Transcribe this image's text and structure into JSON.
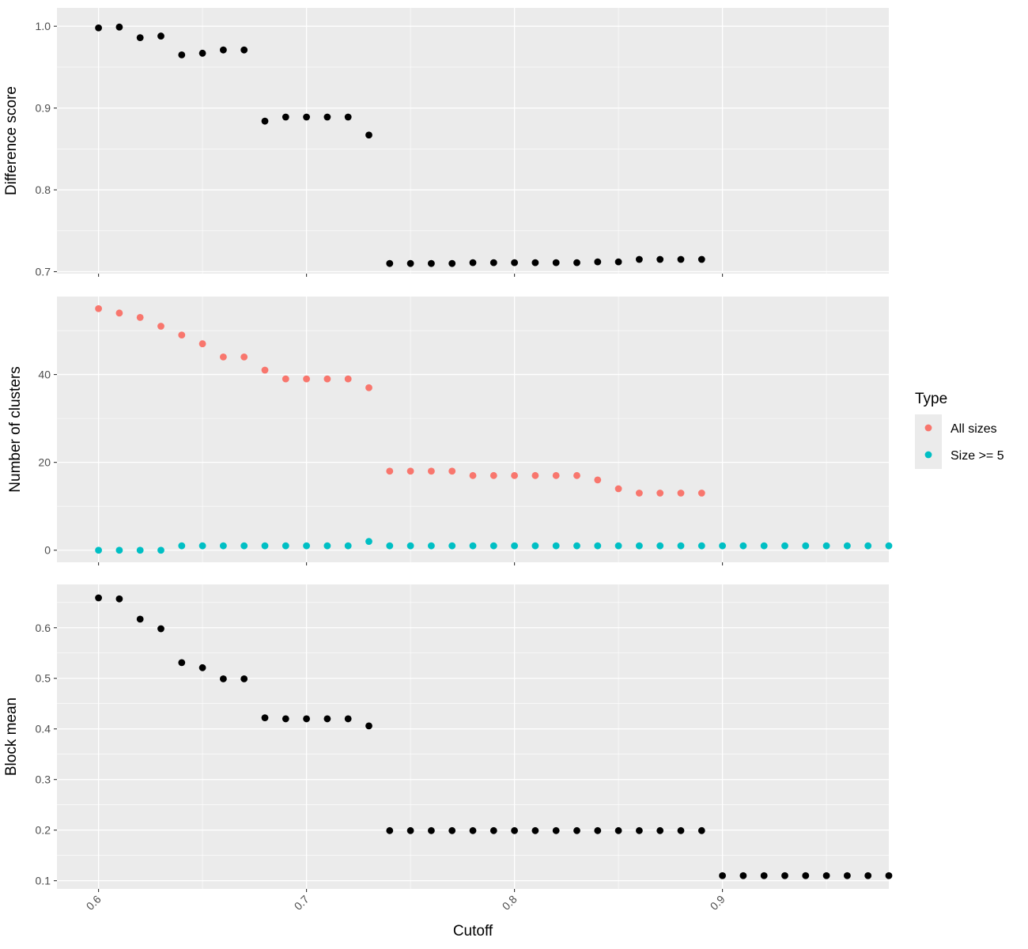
{
  "chart_data": [
    {
      "type": "scatter",
      "panel": "top",
      "ylabel": "Difference score",
      "xlim": [
        0.58,
        0.98
      ],
      "ylim": [
        0.6976,
        1.0224
      ],
      "yticks": [
        {
          "v": 0.7,
          "label": "0.7"
        },
        {
          "v": 0.8,
          "label": "0.8"
        },
        {
          "v": 0.9,
          "label": "0.9"
        },
        {
          "v": 1.0,
          "label": "1.0"
        }
      ],
      "grid": true,
      "series": [
        {
          "color": "#000000",
          "x": [
            0.6,
            0.61,
            0.62,
            0.63,
            0.64,
            0.65,
            0.66,
            0.67,
            0.68,
            0.69,
            0.7,
            0.71,
            0.72,
            0.73,
            0.74,
            0.75,
            0.76,
            0.77,
            0.78,
            0.79,
            0.8,
            0.81,
            0.82,
            0.83,
            0.84,
            0.85,
            0.86,
            0.87,
            0.88,
            0.89
          ],
          "y": [
            0.998,
            0.999,
            0.986,
            0.988,
            0.965,
            0.967,
            0.971,
            0.971,
            0.884,
            0.889,
            0.889,
            0.889,
            0.889,
            0.867,
            0.71,
            0.71,
            0.71,
            0.71,
            0.711,
            0.711,
            0.711,
            0.711,
            0.711,
            0.711,
            0.712,
            0.712,
            0.715,
            0.715,
            0.715,
            0.715
          ]
        }
      ]
    },
    {
      "type": "scatter",
      "panel": "middle",
      "ylabel": "Number of clusters",
      "xlim": [
        0.58,
        0.98
      ],
      "ylim": [
        -2.75,
        57.75
      ],
      "yticks": [
        {
          "v": 0,
          "label": "0"
        },
        {
          "v": 20,
          "label": "20"
        },
        {
          "v": 40,
          "label": "40"
        }
      ],
      "grid": true,
      "legend": {
        "title": "Type",
        "position": "right"
      },
      "series": [
        {
          "name": "All sizes",
          "color": "#F8766D",
          "x": [
            0.6,
            0.61,
            0.62,
            0.63,
            0.64,
            0.65,
            0.66,
            0.67,
            0.68,
            0.69,
            0.7,
            0.71,
            0.72,
            0.73,
            0.74,
            0.75,
            0.76,
            0.77,
            0.78,
            0.79,
            0.8,
            0.81,
            0.82,
            0.83,
            0.84,
            0.85,
            0.86,
            0.87,
            0.88,
            0.89
          ],
          "y": [
            55,
            54,
            53,
            51,
            49,
            47,
            44,
            44,
            41,
            39,
            39,
            39,
            39,
            37,
            18,
            18,
            18,
            18,
            17,
            17,
            17,
            17,
            17,
            17,
            16,
            14,
            13,
            13,
            13,
            13
          ]
        },
        {
          "name": "Size >= 5",
          "color": "#00BFC4",
          "x": [
            0.6,
            0.61,
            0.62,
            0.63,
            0.64,
            0.65,
            0.66,
            0.67,
            0.68,
            0.69,
            0.7,
            0.71,
            0.72,
            0.73,
            0.74,
            0.75,
            0.76,
            0.77,
            0.78,
            0.79,
            0.8,
            0.81,
            0.82,
            0.83,
            0.84,
            0.85,
            0.86,
            0.87,
            0.88,
            0.89,
            0.9,
            0.91,
            0.92,
            0.93,
            0.94,
            0.95,
            0.96,
            0.97,
            0.98
          ],
          "y": [
            0,
            0,
            0,
            0,
            1,
            1,
            1,
            1,
            1,
            1,
            1,
            1,
            1,
            2,
            1,
            1,
            1,
            1,
            1,
            1,
            1,
            1,
            1,
            1,
            1,
            1,
            1,
            1,
            1,
            1,
            1,
            1,
            1,
            1,
            1,
            1,
            1,
            1,
            1
          ]
        }
      ]
    },
    {
      "type": "scatter",
      "panel": "bottom",
      "ylabel": "Block mean",
      "xlabel": "Cutoff",
      "xlim": [
        0.58,
        0.98
      ],
      "ylim": [
        0.0838,
        0.6856
      ],
      "xticks": [
        {
          "v": 0.6,
          "label": "0.6"
        },
        {
          "v": 0.7,
          "label": "0.7"
        },
        {
          "v": 0.8,
          "label": "0.8"
        },
        {
          "v": 0.9,
          "label": "0.9"
        }
      ],
      "yticks": [
        {
          "v": 0.1,
          "label": "0.1"
        },
        {
          "v": 0.2,
          "label": "0.2"
        },
        {
          "v": 0.3,
          "label": "0.3"
        },
        {
          "v": 0.4,
          "label": "0.4"
        },
        {
          "v": 0.5,
          "label": "0.5"
        },
        {
          "v": 0.6,
          "label": "0.6"
        }
      ],
      "grid": true,
      "series": [
        {
          "color": "#000000",
          "x": [
            0.6,
            0.61,
            0.62,
            0.63,
            0.64,
            0.65,
            0.66,
            0.67,
            0.68,
            0.69,
            0.7,
            0.71,
            0.72,
            0.73,
            0.74,
            0.75,
            0.76,
            0.77,
            0.78,
            0.79,
            0.8,
            0.81,
            0.82,
            0.83,
            0.84,
            0.85,
            0.86,
            0.87,
            0.88,
            0.89,
            0.9,
            0.91,
            0.92,
            0.93,
            0.94,
            0.95,
            0.96,
            0.97,
            0.98
          ],
          "y": [
            0.659,
            0.657,
            0.617,
            0.598,
            0.531,
            0.521,
            0.499,
            0.499,
            0.422,
            0.42,
            0.42,
            0.42,
            0.42,
            0.406,
            0.199,
            0.199,
            0.199,
            0.199,
            0.199,
            0.199,
            0.199,
            0.199,
            0.199,
            0.199,
            0.199,
            0.199,
            0.199,
            0.199,
            0.199,
            0.199,
            0.11,
            0.11,
            0.11,
            0.11,
            0.11,
            0.11,
            0.11,
            0.11,
            0.11
          ]
        }
      ]
    }
  ],
  "legend": {
    "title": "Type",
    "items": [
      {
        "label": "All sizes",
        "color": "#F8766D"
      },
      {
        "label": "Size >= 5",
        "color": "#00BFC4"
      }
    ]
  },
  "x_axis": {
    "title": "Cutoff",
    "ticks": [
      {
        "v": 0.6,
        "label": "0.6"
      },
      {
        "v": 0.7,
        "label": "0.7"
      },
      {
        "v": 0.8,
        "label": "0.8"
      },
      {
        "v": 0.9,
        "label": "0.9"
      }
    ]
  }
}
